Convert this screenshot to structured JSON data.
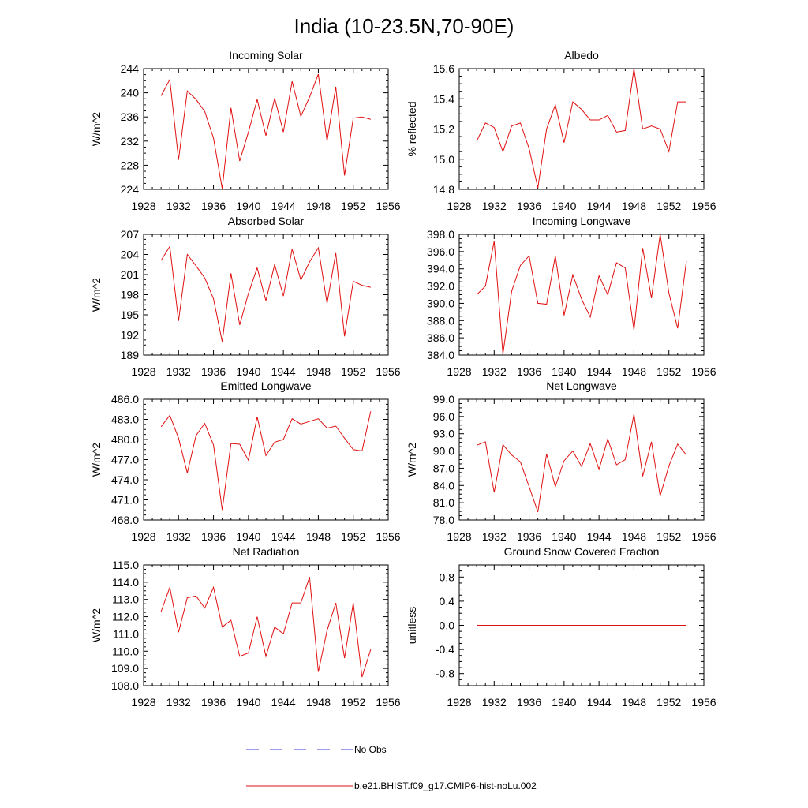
{
  "figure": {
    "title": "India (10-23.5N,70-90E)"
  },
  "legend": {
    "entries": [
      {
        "label": "No Obs",
        "color": "#3a3ad6",
        "style": "dashed"
      },
      {
        "label": "b.e21.BHIST.f09_g17.CMIP6-hist-noLu.002",
        "color": "#e01010",
        "style": "solid"
      }
    ]
  },
  "chart_data": [
    {
      "type": "line",
      "title": "Incoming Solar",
      "ylabel": "W/m^2",
      "xlabel": "",
      "xlim": [
        1928,
        1956
      ],
      "xticks": [
        "1928",
        "1932",
        "1936",
        "1940",
        "1944",
        "1948",
        "1952",
        "1956"
      ],
      "ylim": [
        224,
        244
      ],
      "yticks": [
        "224",
        "228",
        "232",
        "236",
        "240",
        "244"
      ],
      "series": [
        {
          "color": "#e01010",
          "x": [
            1930,
            1931,
            1932,
            1933,
            1934,
            1935,
            1936,
            1937,
            1938,
            1939,
            1940,
            1941,
            1942,
            1943,
            1944,
            1945,
            1946,
            1947,
            1948,
            1949,
            1950,
            1951,
            1952,
            1953,
            1954
          ],
          "y": [
            239.5,
            242.2,
            228.9,
            240.3,
            238.9,
            236.9,
            232.5,
            224.1,
            237.5,
            228.7,
            233.5,
            238.9,
            232.9,
            239.1,
            233.5,
            241.9,
            236.1,
            239.3,
            243.1,
            232.0,
            241.0,
            226.3,
            235.8,
            236.0,
            235.6
          ]
        }
      ]
    },
    {
      "type": "line",
      "title": "Albedo",
      "ylabel": "% reflected",
      "xlabel": "",
      "xlim": [
        1928,
        1956
      ],
      "xticks": [
        "1928",
        "1932",
        "1936",
        "1940",
        "1944",
        "1948",
        "1952",
        "1956"
      ],
      "ylim": [
        14.8,
        15.6
      ],
      "yticks": [
        "14.8",
        "15.0",
        "15.2",
        "15.4",
        "15.6"
      ],
      "series": [
        {
          "color": "#e01010",
          "x": [
            1930,
            1931,
            1932,
            1933,
            1934,
            1935,
            1936,
            1937,
            1938,
            1939,
            1940,
            1941,
            1942,
            1943,
            1944,
            1945,
            1946,
            1947,
            1948,
            1949,
            1950,
            1951,
            1952,
            1953,
            1954
          ],
          "y": [
            15.12,
            15.24,
            15.21,
            15.05,
            15.22,
            15.24,
            15.07,
            14.81,
            15.2,
            15.36,
            15.11,
            15.38,
            15.33,
            15.26,
            15.26,
            15.29,
            15.18,
            15.19,
            15.6,
            15.2,
            15.22,
            15.2,
            15.05,
            15.38,
            15.38
          ]
        }
      ]
    },
    {
      "type": "line",
      "title": "Absorbed Solar",
      "ylabel": "W/m^2",
      "xlabel": "",
      "xlim": [
        1928,
        1956
      ],
      "xticks": [
        "1928",
        "1932",
        "1936",
        "1940",
        "1944",
        "1948",
        "1952",
        "1956"
      ],
      "ylim": [
        189,
        207
      ],
      "yticks": [
        "189",
        "192",
        "195",
        "198",
        "201",
        "204",
        "207"
      ],
      "series": [
        {
          "color": "#e01010",
          "x": [
            1930,
            1931,
            1932,
            1933,
            1934,
            1935,
            1936,
            1937,
            1938,
            1939,
            1940,
            1941,
            1942,
            1943,
            1944,
            1945,
            1946,
            1947,
            1948,
            1949,
            1950,
            1951,
            1952,
            1953,
            1954
          ],
          "y": [
            203.1,
            205.2,
            194.1,
            204.0,
            202.3,
            200.5,
            197.4,
            191.0,
            201.2,
            193.5,
            198.2,
            202.0,
            197.1,
            202.5,
            197.8,
            204.8,
            200.2,
            202.9,
            205.0,
            196.7,
            204.2,
            191.8,
            200.0,
            199.4,
            199.1
          ]
        }
      ]
    },
    {
      "type": "line",
      "title": "Incoming Longwave",
      "ylabel": "",
      "xlabel": "",
      "xlim": [
        1928,
        1956
      ],
      "xticks": [
        "1928",
        "1932",
        "1936",
        "1940",
        "1944",
        "1948",
        "1952",
        "1956"
      ],
      "ylim": [
        384.0,
        398.0
      ],
      "yticks": [
        "384.0",
        "386.0",
        "388.0",
        "390.0",
        "392.0",
        "394.0",
        "396.0",
        "398.0"
      ],
      "series": [
        {
          "color": "#e01010",
          "x": [
            1930,
            1931,
            1932,
            1933,
            1934,
            1935,
            1936,
            1937,
            1938,
            1939,
            1940,
            1941,
            1942,
            1943,
            1944,
            1945,
            1946,
            1947,
            1948,
            1949,
            1950,
            1951,
            1952,
            1953,
            1954
          ],
          "y": [
            391.0,
            392.0,
            397.2,
            384.1,
            391.4,
            394.4,
            395.5,
            390.0,
            389.9,
            395.5,
            388.6,
            393.3,
            390.5,
            388.4,
            393.2,
            391.0,
            394.7,
            394.1,
            386.9,
            396.4,
            390.6,
            398.0,
            391.2,
            387.1,
            394.9
          ]
        }
      ]
    },
    {
      "type": "line",
      "title": "Emitted Longwave",
      "ylabel": "W/m^2",
      "xlabel": "",
      "xlim": [
        1928,
        1956
      ],
      "xticks": [
        "1928",
        "1932",
        "1936",
        "1940",
        "1944",
        "1948",
        "1952",
        "1956"
      ],
      "ylim": [
        468.0,
        486.0
      ],
      "yticks": [
        "468.0",
        "471.0",
        "474.0",
        "477.0",
        "480.0",
        "483.0",
        "486.0"
      ],
      "series": [
        {
          "color": "#e01010",
          "x": [
            1930,
            1931,
            1932,
            1933,
            1934,
            1935,
            1936,
            1937,
            1938,
            1939,
            1940,
            1941,
            1942,
            1943,
            1944,
            1945,
            1946,
            1947,
            1948,
            1949,
            1950,
            1951,
            1952,
            1953,
            1954
          ],
          "y": [
            481.9,
            483.6,
            480.2,
            475.0,
            480.6,
            482.4,
            479.2,
            469.5,
            479.4,
            479.3,
            476.9,
            483.4,
            477.6,
            479.6,
            480.0,
            483.1,
            482.3,
            482.7,
            483.1,
            481.7,
            482.0,
            480.2,
            478.5,
            478.3,
            484.2
          ]
        }
      ]
    },
    {
      "type": "line",
      "title": "Net Longwave",
      "ylabel": "W/m^2",
      "xlabel": "",
      "xlim": [
        1928,
        1956
      ],
      "xticks": [
        "1928",
        "1932",
        "1936",
        "1940",
        "1944",
        "1948",
        "1952",
        "1956"
      ],
      "ylim": [
        78.0,
        99.0
      ],
      "yticks": [
        "78.0",
        "81.0",
        "84.0",
        "87.0",
        "90.0",
        "93.0",
        "96.0",
        "99.0"
      ],
      "series": [
        {
          "color": "#e01010",
          "x": [
            1930,
            1931,
            1932,
            1933,
            1934,
            1935,
            1936,
            1937,
            1938,
            1939,
            1940,
            1941,
            1942,
            1943,
            1944,
            1945,
            1946,
            1947,
            1948,
            1949,
            1950,
            1951,
            1952,
            1953,
            1954
          ],
          "y": [
            91.0,
            91.6,
            82.8,
            91.1,
            89.3,
            88.1,
            83.8,
            79.4,
            89.5,
            83.8,
            88.3,
            90.0,
            87.3,
            91.3,
            86.8,
            92.1,
            87.6,
            88.5,
            96.4,
            85.6,
            91.6,
            82.2,
            87.4,
            91.2,
            89.3
          ]
        }
      ]
    },
    {
      "type": "line",
      "title": "Net Radiation",
      "ylabel": "W/m^2",
      "xlabel": "",
      "xlim": [
        1928,
        1956
      ],
      "xticks": [
        "1928",
        "1932",
        "1936",
        "1940",
        "1944",
        "1948",
        "1952",
        "1956"
      ],
      "ylim": [
        108.0,
        115.0
      ],
      "yticks": [
        "108.0",
        "109.0",
        "110.0",
        "111.0",
        "112.0",
        "113.0",
        "114.0",
        "115.0"
      ],
      "series": [
        {
          "color": "#e01010",
          "x": [
            1930,
            1931,
            1932,
            1933,
            1934,
            1935,
            1936,
            1937,
            1938,
            1939,
            1940,
            1941,
            1942,
            1943,
            1944,
            1945,
            1946,
            1947,
            1948,
            1949,
            1950,
            1951,
            1952,
            1953,
            1954
          ],
          "y": [
            112.3,
            113.7,
            111.1,
            113.1,
            113.2,
            112.5,
            113.7,
            111.4,
            111.8,
            109.7,
            109.9,
            112.0,
            109.7,
            111.4,
            111.0,
            112.8,
            112.8,
            114.3,
            108.8,
            111.2,
            112.8,
            109.6,
            112.8,
            108.5,
            110.1
          ]
        }
      ]
    },
    {
      "type": "line",
      "title": "Ground Snow Covered Fraction",
      "ylabel": "unitless",
      "xlabel": "",
      "xlim": [
        1928,
        1956
      ],
      "xticks": [
        "1928",
        "1932",
        "1936",
        "1940",
        "1944",
        "1948",
        "1952",
        "1956"
      ],
      "ylim": [
        -1.0,
        1.0
      ],
      "yticks": [
        "-0.8",
        "-0.4",
        "0.0",
        "0.4",
        "0.8"
      ],
      "series": [
        {
          "color": "#e01010",
          "x": [
            1930,
            1954
          ],
          "y": [
            0.0,
            0.0
          ]
        }
      ]
    }
  ]
}
